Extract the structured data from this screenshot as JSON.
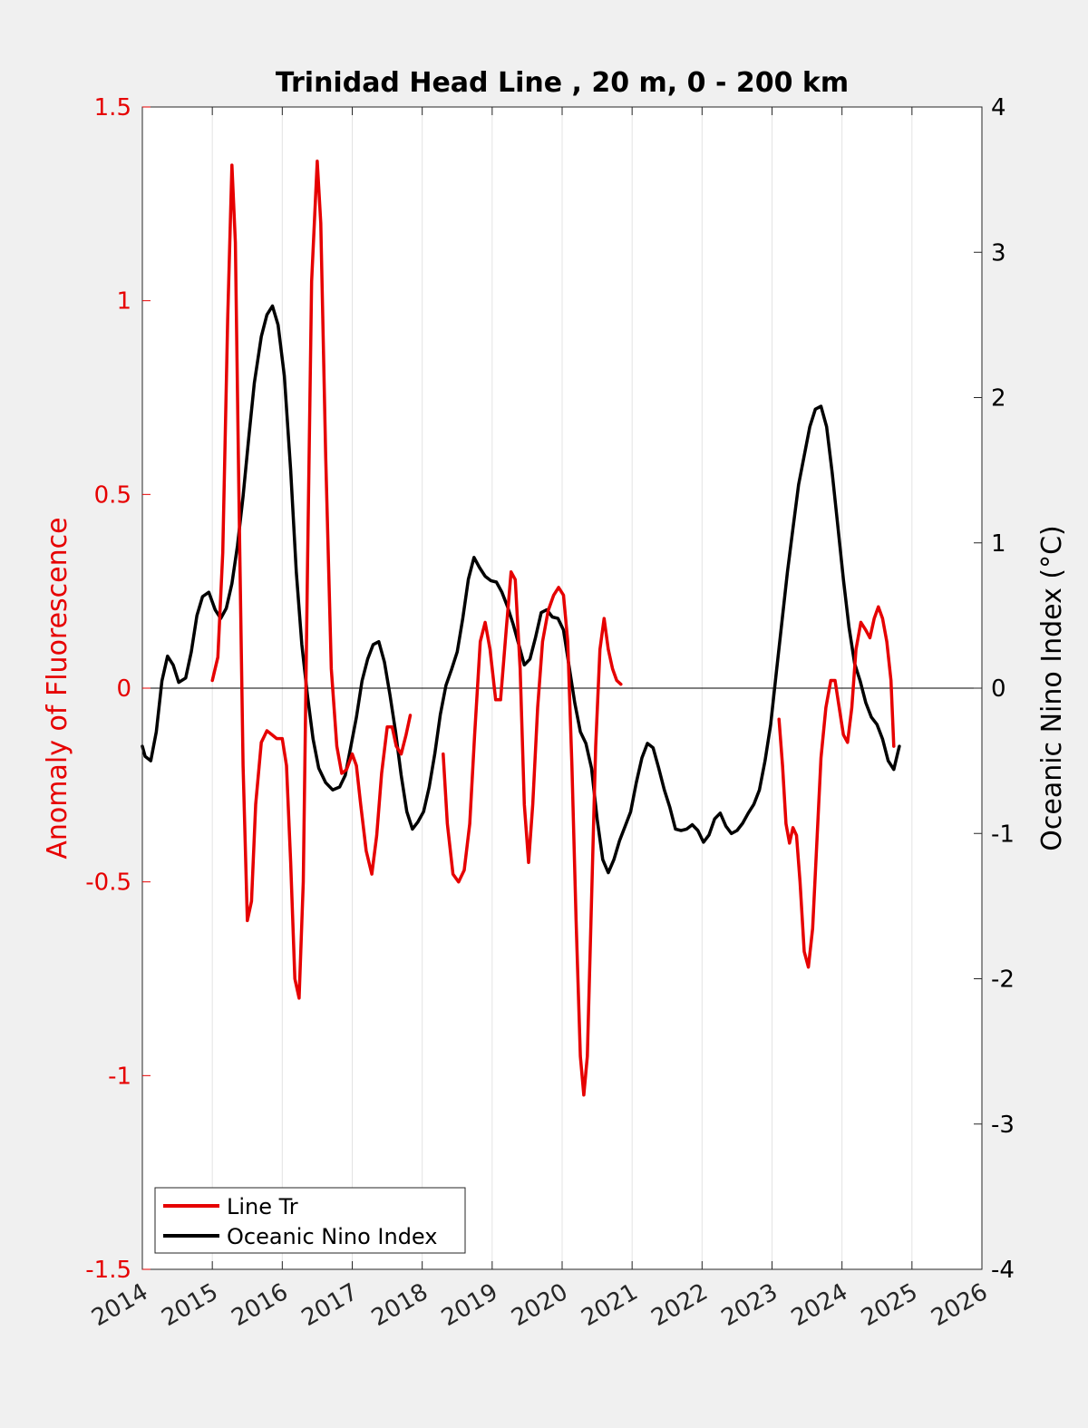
{
  "chart_data": {
    "type": "line",
    "title": "Trinidad Head Line , 20 m, 0 - 200 km",
    "xlabel": "",
    "ylabel_left": "Anomaly of Fluorescence",
    "ylabel_right": "Oceanic Nino Index (°C)",
    "xlim": [
      2014,
      2026
    ],
    "ylim_left": [
      -1.5,
      1.5
    ],
    "ylim_right": [
      -4,
      4
    ],
    "x_ticks": [
      "2014",
      "2015",
      "2016",
      "2017",
      "2018",
      "2019",
      "2020",
      "2021",
      "2022",
      "2023",
      "2024",
      "2025",
      "2026"
    ],
    "y_left_ticks": [
      "1.5",
      "1",
      "0.5",
      "0",
      "-0.5",
      "-1",
      "-1.5"
    ],
    "y_right_ticks": [
      "4",
      "3",
      "2",
      "1",
      "0",
      "-1",
      "-2",
      "-3",
      "-4"
    ],
    "grid": "vertical lines at x ticks",
    "legend_position": "bottom-left",
    "colors": {
      "line_tr": "#e60000",
      "oni": "#000000",
      "left_axis": "#e60000",
      "right_axis": "#000000"
    },
    "series": [
      {
        "name": "Line Tr",
        "axis": "left",
        "segments": [
          [
            [
              2015.0,
              0.02
            ],
            [
              2015.08,
              0.08
            ],
            [
              2015.15,
              0.35
            ],
            [
              2015.22,
              0.95
            ],
            [
              2015.28,
              1.35
            ],
            [
              2015.33,
              1.15
            ],
            [
              2015.38,
              0.5
            ],
            [
              2015.44,
              -0.2
            ],
            [
              2015.5,
              -0.6
            ],
            [
              2015.56,
              -0.55
            ],
            [
              2015.62,
              -0.3
            ],
            [
              2015.7,
              -0.14
            ],
            [
              2015.78,
              -0.11
            ],
            [
              2015.85,
              -0.12
            ],
            [
              2015.92,
              -0.13
            ],
            [
              2016.0,
              -0.13
            ],
            [
              2016.06,
              -0.2
            ],
            [
              2016.12,
              -0.45
            ],
            [
              2016.18,
              -0.75
            ],
            [
              2016.24,
              -0.8
            ],
            [
              2016.3,
              -0.5
            ],
            [
              2016.36,
              0.3
            ],
            [
              2016.42,
              1.05
            ],
            [
              2016.5,
              1.36
            ],
            [
              2016.55,
              1.2
            ],
            [
              2016.62,
              0.6
            ],
            [
              2016.7,
              0.05
            ],
            [
              2016.78,
              -0.15
            ],
            [
              2016.85,
              -0.22
            ],
            [
              2016.92,
              -0.21
            ],
            [
              2017.0,
              -0.17
            ],
            [
              2017.06,
              -0.2
            ],
            [
              2017.12,
              -0.3
            ],
            [
              2017.2,
              -0.42
            ],
            [
              2017.28,
              -0.48
            ],
            [
              2017.35,
              -0.38
            ],
            [
              2017.42,
              -0.22
            ],
            [
              2017.5,
              -0.1
            ],
            [
              2017.57,
              -0.1
            ],
            [
              2017.63,
              -0.15
            ],
            [
              2017.7,
              -0.17
            ],
            [
              2017.77,
              -0.12
            ],
            [
              2017.83,
              -0.07
            ]
          ],
          [
            [
              2018.3,
              -0.17
            ],
            [
              2018.36,
              -0.35
            ],
            [
              2018.44,
              -0.48
            ],
            [
              2018.52,
              -0.5
            ],
            [
              2018.6,
              -0.47
            ],
            [
              2018.68,
              -0.35
            ],
            [
              2018.75,
              -0.12
            ],
            [
              2018.83,
              0.12
            ],
            [
              2018.9,
              0.17
            ],
            [
              2018.97,
              0.1
            ],
            [
              2019.05,
              -0.03
            ],
            [
              2019.12,
              -0.03
            ],
            [
              2019.2,
              0.15
            ],
            [
              2019.27,
              0.3
            ],
            [
              2019.33,
              0.28
            ],
            [
              2019.4,
              0.05
            ],
            [
              2019.46,
              -0.3
            ],
            [
              2019.52,
              -0.45
            ],
            [
              2019.58,
              -0.3
            ],
            [
              2019.65,
              -0.05
            ],
            [
              2019.72,
              0.12
            ],
            [
              2019.8,
              0.2
            ],
            [
              2019.88,
              0.24
            ],
            [
              2019.95,
              0.26
            ],
            [
              2020.02,
              0.24
            ],
            [
              2020.08,
              0.12
            ],
            [
              2020.14,
              -0.2
            ],
            [
              2020.2,
              -0.6
            ],
            [
              2020.26,
              -0.95
            ],
            [
              2020.31,
              -1.05
            ],
            [
              2020.36,
              -0.95
            ],
            [
              2020.42,
              -0.55
            ],
            [
              2020.48,
              -0.15
            ],
            [
              2020.54,
              0.1
            ],
            [
              2020.6,
              0.18
            ],
            [
              2020.66,
              0.1
            ],
            [
              2020.72,
              0.05
            ],
            [
              2020.78,
              0.02
            ],
            [
              2020.84,
              0.01
            ]
          ],
          [
            [
              2023.1,
              -0.08
            ],
            [
              2023.15,
              -0.2
            ],
            [
              2023.2,
              -0.35
            ],
            [
              2023.25,
              -0.4
            ],
            [
              2023.3,
              -0.36
            ],
            [
              2023.35,
              -0.38
            ],
            [
              2023.4,
              -0.5
            ],
            [
              2023.46,
              -0.68
            ],
            [
              2023.52,
              -0.72
            ],
            [
              2023.58,
              -0.62
            ],
            [
              2023.64,
              -0.4
            ],
            [
              2023.7,
              -0.18
            ],
            [
              2023.77,
              -0.05
            ],
            [
              2023.84,
              0.02
            ],
            [
              2023.9,
              0.02
            ],
            [
              2023.96,
              -0.05
            ],
            [
              2024.02,
              -0.12
            ],
            [
              2024.08,
              -0.14
            ],
            [
              2024.14,
              -0.05
            ],
            [
              2024.2,
              0.1
            ],
            [
              2024.27,
              0.17
            ],
            [
              2024.34,
              0.15
            ],
            [
              2024.4,
              0.13
            ],
            [
              2024.46,
              0.18
            ],
            [
              2024.52,
              0.21
            ],
            [
              2024.58,
              0.18
            ],
            [
              2024.64,
              0.12
            ],
            [
              2024.7,
              0.02
            ],
            [
              2024.74,
              -0.15
            ]
          ]
        ]
      },
      {
        "name": "Oceanic Nino Index",
        "axis": "right",
        "segments": [
          [
            [
              2014.0,
              -0.4
            ],
            [
              2014.04,
              -0.47
            ],
            [
              2014.12,
              -0.5
            ],
            [
              2014.2,
              -0.3
            ],
            [
              2014.28,
              0.05
            ],
            [
              2014.36,
              0.22
            ],
            [
              2014.44,
              0.16
            ],
            [
              2014.52,
              0.04
            ],
            [
              2014.62,
              0.07
            ],
            [
              2014.7,
              0.25
            ],
            [
              2014.78,
              0.5
            ],
            [
              2014.86,
              0.63
            ],
            [
              2014.95,
              0.66
            ],
            [
              2015.04,
              0.54
            ],
            [
              2015.12,
              0.48
            ],
            [
              2015.2,
              0.55
            ],
            [
              2015.28,
              0.72
            ],
            [
              2015.36,
              0.98
            ],
            [
              2015.44,
              1.32
            ],
            [
              2015.52,
              1.72
            ],
            [
              2015.6,
              2.1
            ],
            [
              2015.7,
              2.42
            ],
            [
              2015.78,
              2.57
            ],
            [
              2015.86,
              2.63
            ],
            [
              2015.94,
              2.5
            ],
            [
              2016.03,
              2.15
            ],
            [
              2016.12,
              1.5
            ],
            [
              2016.2,
              0.8
            ],
            [
              2016.28,
              0.3
            ],
            [
              2016.36,
              -0.05
            ],
            [
              2016.44,
              -0.35
            ],
            [
              2016.52,
              -0.55
            ],
            [
              2016.62,
              -0.65
            ],
            [
              2016.72,
              -0.7
            ],
            [
              2016.82,
              -0.68
            ],
            [
              2016.9,
              -0.6
            ],
            [
              2016.98,
              -0.4
            ],
            [
              2017.06,
              -0.2
            ],
            [
              2017.14,
              0.05
            ],
            [
              2017.22,
              0.2
            ],
            [
              2017.3,
              0.3
            ],
            [
              2017.38,
              0.32
            ],
            [
              2017.46,
              0.18
            ],
            [
              2017.54,
              -0.05
            ],
            [
              2017.62,
              -0.3
            ],
            [
              2017.7,
              -0.6
            ],
            [
              2017.78,
              -0.85
            ],
            [
              2017.86,
              -0.97
            ],
            [
              2017.94,
              -0.92
            ],
            [
              2018.02,
              -0.85
            ],
            [
              2018.1,
              -0.68
            ],
            [
              2018.18,
              -0.45
            ],
            [
              2018.26,
              -0.18
            ],
            [
              2018.34,
              0.02
            ],
            [
              2018.42,
              0.13
            ],
            [
              2018.5,
              0.25
            ],
            [
              2018.58,
              0.48
            ],
            [
              2018.66,
              0.75
            ],
            [
              2018.74,
              0.9
            ],
            [
              2018.82,
              0.83
            ],
            [
              2018.9,
              0.77
            ],
            [
              2018.98,
              0.74
            ],
            [
              2019.06,
              0.73
            ],
            [
              2019.14,
              0.66
            ],
            [
              2019.22,
              0.56
            ],
            [
              2019.3,
              0.44
            ],
            [
              2019.38,
              0.3
            ],
            [
              2019.46,
              0.16
            ],
            [
              2019.54,
              0.2
            ],
            [
              2019.62,
              0.35
            ],
            [
              2019.7,
              0.52
            ],
            [
              2019.78,
              0.54
            ],
            [
              2019.86,
              0.49
            ],
            [
              2019.94,
              0.48
            ],
            [
              2020.02,
              0.4
            ],
            [
              2020.1,
              0.15
            ],
            [
              2020.18,
              -0.1
            ],
            [
              2020.26,
              -0.3
            ],
            [
              2020.34,
              -0.38
            ],
            [
              2020.42,
              -0.55
            ],
            [
              2020.5,
              -0.9
            ],
            [
              2020.58,
              -1.18
            ],
            [
              2020.66,
              -1.27
            ],
            [
              2020.74,
              -1.18
            ],
            [
              2020.82,
              -1.05
            ],
            [
              2020.9,
              -0.95
            ],
            [
              2020.98,
              -0.85
            ],
            [
              2021.06,
              -0.65
            ],
            [
              2021.14,
              -0.48
            ],
            [
              2021.22,
              -0.38
            ],
            [
              2021.3,
              -0.41
            ],
            [
              2021.38,
              -0.55
            ],
            [
              2021.46,
              -0.7
            ],
            [
              2021.54,
              -0.82
            ],
            [
              2021.62,
              -0.97
            ],
            [
              2021.7,
              -0.98
            ],
            [
              2021.78,
              -0.97
            ],
            [
              2021.86,
              -0.94
            ],
            [
              2021.94,
              -0.98
            ],
            [
              2022.02,
              -1.06
            ],
            [
              2022.1,
              -1.01
            ],
            [
              2022.18,
              -0.9
            ],
            [
              2022.26,
              -0.86
            ],
            [
              2022.34,
              -0.95
            ],
            [
              2022.42,
              -1.0
            ],
            [
              2022.5,
              -0.98
            ],
            [
              2022.58,
              -0.93
            ],
            [
              2022.66,
              -0.86
            ],
            [
              2022.74,
              -0.8
            ],
            [
              2022.82,
              -0.7
            ],
            [
              2022.9,
              -0.5
            ],
            [
              2022.98,
              -0.25
            ],
            [
              2023.06,
              0.1
            ],
            [
              2023.14,
              0.45
            ],
            [
              2023.22,
              0.8
            ],
            [
              2023.3,
              1.1
            ],
            [
              2023.38,
              1.4
            ],
            [
              2023.46,
              1.6
            ],
            [
              2023.54,
              1.8
            ],
            [
              2023.62,
              1.92
            ],
            [
              2023.7,
              1.94
            ],
            [
              2023.78,
              1.8
            ],
            [
              2023.86,
              1.48
            ],
            [
              2023.94,
              1.12
            ],
            [
              2024.02,
              0.75
            ],
            [
              2024.1,
              0.42
            ],
            [
              2024.18,
              0.17
            ],
            [
              2024.26,
              0.05
            ],
            [
              2024.34,
              -0.1
            ],
            [
              2024.42,
              -0.2
            ],
            [
              2024.5,
              -0.25
            ],
            [
              2024.58,
              -0.35
            ],
            [
              2024.66,
              -0.5
            ],
            [
              2024.74,
              -0.56
            ],
            [
              2024.82,
              -0.4
            ]
          ]
        ]
      }
    ]
  }
}
